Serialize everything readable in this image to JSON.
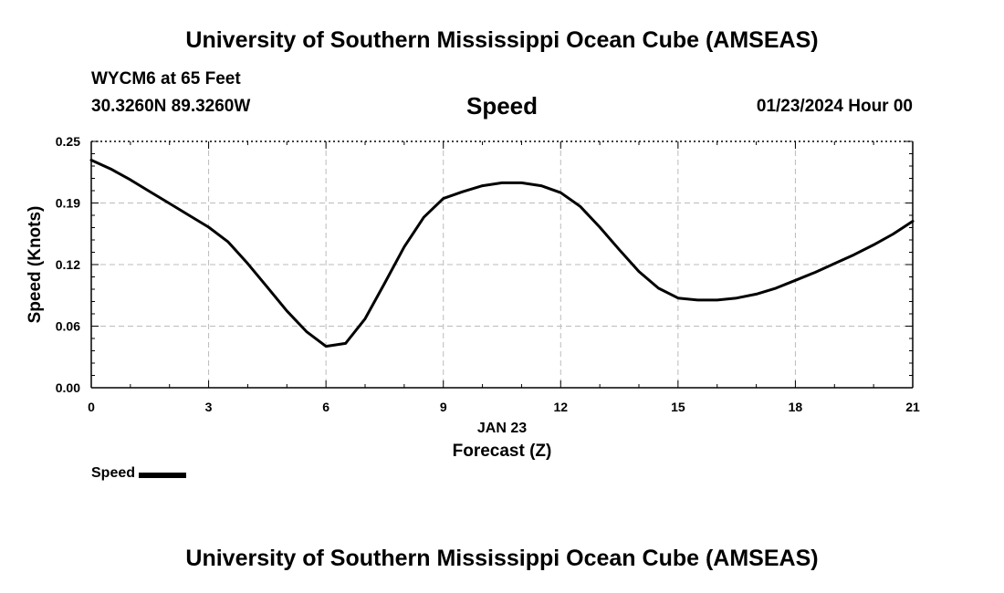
{
  "header": {
    "title": "University of Southern Mississippi Ocean Cube (AMSEAS)",
    "station": "WYCM6 at 65 Feet",
    "coords": "30.3260N  89.3260W",
    "timestamp": "01/23/2024 Hour 00"
  },
  "footer": {
    "title": "University of Southern Mississippi Ocean Cube (AMSEAS)"
  },
  "chart_data": {
    "type": "line",
    "title": "Speed",
    "xlabel": "Forecast (Z)",
    "xdate_label": "JAN 23",
    "ylabel": "Speed (Knots)",
    "xlim": [
      0,
      21
    ],
    "ylim": [
      0,
      0.25
    ],
    "xticks": [
      0,
      3,
      6,
      9,
      12,
      15,
      18,
      21
    ],
    "yticks": [
      0,
      0.0625,
      0.125,
      0.1875,
      0.25
    ],
    "ytick_labels": [
      "0.00",
      "0.06",
      "0.12",
      "0.19",
      "0.25"
    ],
    "grid": true,
    "legend_position": "bottom-left",
    "series": [
      {
        "name": "Speed",
        "color": "#000000",
        "x": [
          0,
          0.5,
          1,
          1.5,
          2,
          2.5,
          3,
          3.5,
          4,
          4.5,
          5,
          5.5,
          6,
          6.5,
          7,
          7.5,
          8,
          8.5,
          9,
          9.5,
          10,
          10.5,
          11,
          11.5,
          12,
          12.5,
          13,
          13.5,
          14,
          14.5,
          15,
          15.5,
          16,
          16.5,
          17,
          17.5,
          18,
          18.5,
          19,
          19.5,
          20,
          20.5,
          21
        ],
        "values": [
          0.231,
          0.222,
          0.211,
          0.199,
          0.187,
          0.175,
          0.163,
          0.148,
          0.126,
          0.102,
          0.078,
          0.057,
          0.042,
          0.045,
          0.07,
          0.106,
          0.143,
          0.173,
          0.192,
          0.199,
          0.205,
          0.208,
          0.208,
          0.205,
          0.198,
          0.184,
          0.163,
          0.14,
          0.118,
          0.101,
          0.091,
          0.089,
          0.089,
          0.091,
          0.095,
          0.101,
          0.109,
          0.117,
          0.126,
          0.135,
          0.145,
          0.156,
          0.169
        ]
      }
    ]
  }
}
